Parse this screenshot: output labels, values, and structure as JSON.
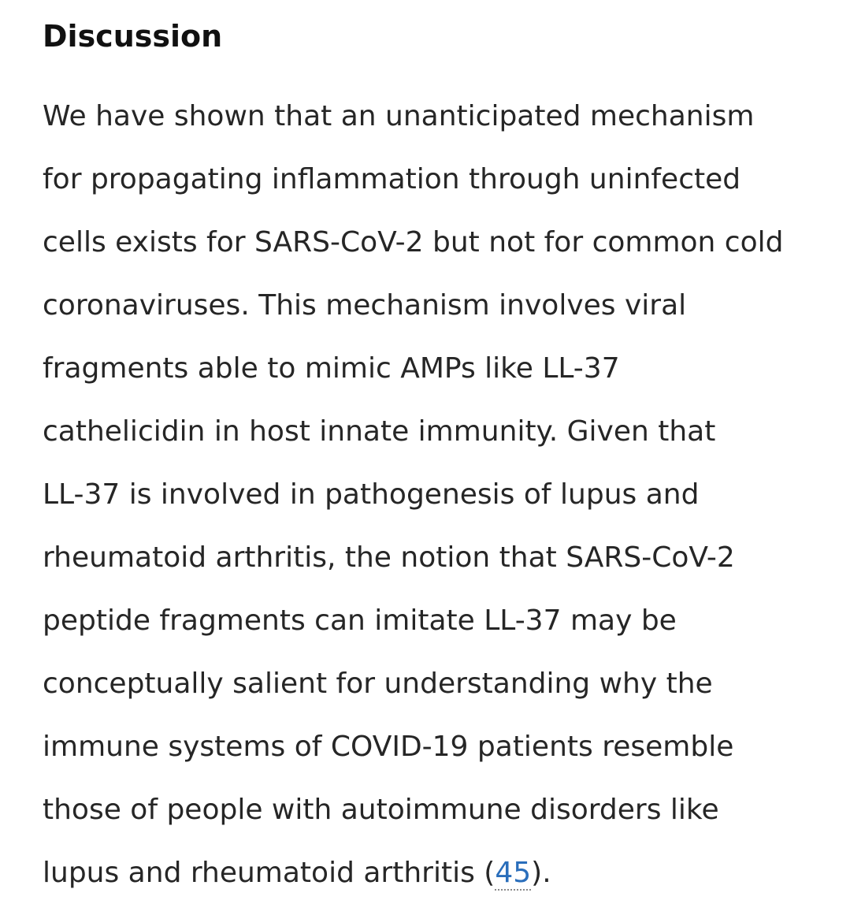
{
  "section": {
    "heading": "Discussion",
    "lines": [
      "We have shown that an unanticipated mechanism",
      "for propagating inflammation through uninfected",
      "cells exists for SARS-CoV-2 but not for common cold",
      "coronaviruses. This mechanism involves viral",
      "fragments able to mimic AMPs like LL-37",
      "cathelicidin in host innate immunity. Given that",
      "LL-37 is involved in pathogenesis of lupus and",
      "rheumatoid arthritis, the notion that SARS-CoV-2",
      "peptide fragments can imitate LL-37 may be",
      "conceptually salient for understanding why the",
      "immune systems of COVID-19 patients resemble",
      "those of people with autoimmune disorders like"
    ],
    "last_line": {
      "before": "lupus and rheumatoid arthritis (",
      "reference": "45",
      "after": ")."
    }
  },
  "colors": {
    "text": "#262626",
    "heading": "#111111",
    "link": "#2a6ebb",
    "background": "#ffffff"
  }
}
